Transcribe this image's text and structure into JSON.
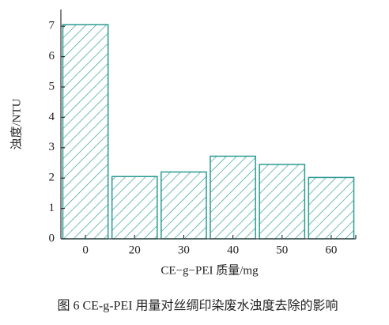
{
  "chart_data": {
    "type": "bar",
    "ylabel": "浊度/NTU",
    "xlabel": "CE−g−PEI 质量/mg",
    "caption": "图 6    CE-g-PEI 用量对丝绸印染废水浊度去除的影响",
    "categories": [
      "0",
      "20",
      "30",
      "40",
      "50",
      "60"
    ],
    "values": [
      7.05,
      2.05,
      2.2,
      2.72,
      2.45,
      2.02
    ],
    "color": "#2a9a92",
    "ylim": [
      0,
      7.55
    ],
    "yticks": [
      0,
      1,
      2,
      3,
      4,
      5,
      6,
      7
    ]
  }
}
